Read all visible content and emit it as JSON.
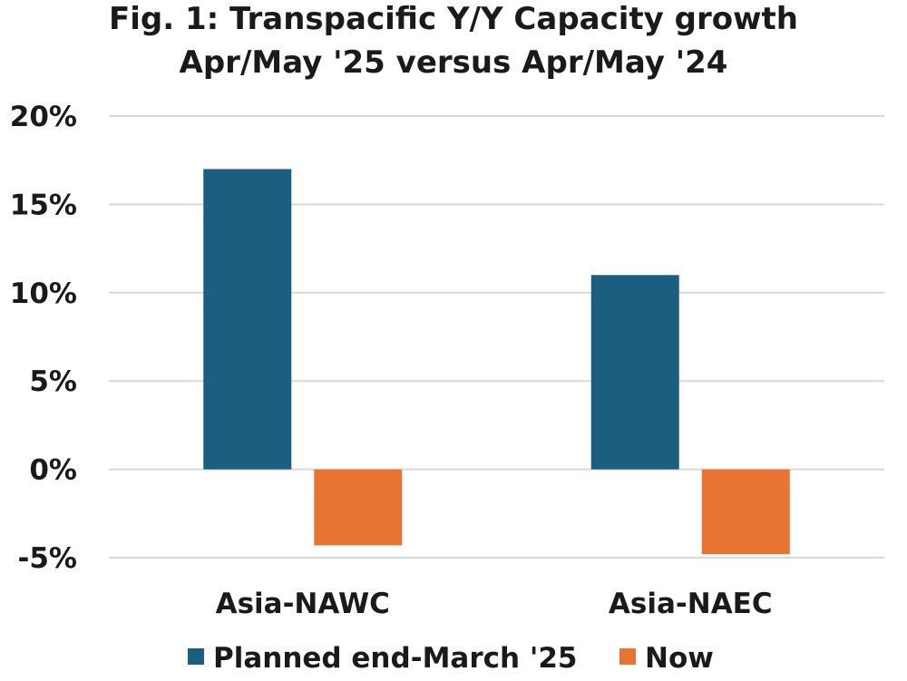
{
  "chart_data": {
    "type": "bar",
    "title": "Fig. 1: Transpacific Y/Y Capacity growth",
    "subtitle": "Apr/May '25 versus Apr/May '24",
    "categories": [
      "Asia-NAWC",
      "Asia-NAEC"
    ],
    "series": [
      {
        "name": "Planned end-March '25",
        "values": [
          17,
          11
        ],
        "color": "#1b5e7f"
      },
      {
        "name": "Now",
        "values": [
          -4.3,
          -4.8
        ],
        "color": "#e87433"
      }
    ],
    "ylim": [
      -5,
      20
    ],
    "yticks": [
      20,
      15,
      10,
      5,
      0,
      -5
    ],
    "ytick_labels": [
      "20%",
      "15%",
      "10%",
      "5%",
      "0%",
      "-5%"
    ],
    "xlabel": "",
    "ylabel": "",
    "grid": true,
    "legend_position": "bottom"
  }
}
